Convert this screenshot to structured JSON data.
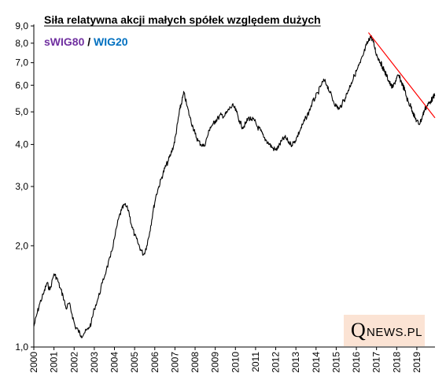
{
  "chart_data": {
    "type": "line",
    "title": "Siła relatywna akcji małych spółek względem dużych",
    "legend": {
      "items": [
        {
          "text": "sWIG80",
          "color": "#7030a0"
        },
        {
          "text": " / ",
          "color": "#000000"
        },
        {
          "text": "WIG20",
          "color": "#0070c0"
        }
      ],
      "placement": "top-left"
    },
    "y_scale": "log",
    "ylim": [
      1.0,
      9.0
    ],
    "xlim": [
      2000.0,
      2019.9
    ],
    "yticks": [
      {
        "value": 1.0,
        "label": "1,0"
      },
      {
        "value": 2.0,
        "label": "2,0"
      },
      {
        "value": 3.0,
        "label": "3,0"
      },
      {
        "value": 4.0,
        "label": "4,0"
      },
      {
        "value": 5.0,
        "label": "5,0"
      },
      {
        "value": 6.0,
        "label": "6,0"
      },
      {
        "value": 7.0,
        "label": "7,0"
      },
      {
        "value": 8.0,
        "label": "8,0"
      },
      {
        "value": 9.0,
        "label": "9,0"
      }
    ],
    "xticks": [
      "2000",
      "2001",
      "2002",
      "2003",
      "2004",
      "2005",
      "2006",
      "2007",
      "2008",
      "2009",
      "2010",
      "2011",
      "2012",
      "2013",
      "2014",
      "2015",
      "2016",
      "2017",
      "2018",
      "2019"
    ],
    "grid": false,
    "series": [
      {
        "color": "#000000",
        "x": [
          2000.0,
          2000.15,
          2000.3,
          2000.5,
          2000.65,
          2000.8,
          2001.0,
          2001.15,
          2001.3,
          2001.45,
          2001.6,
          2001.75,
          2001.9,
          2002.05,
          2002.2,
          2002.35,
          2002.5,
          2002.7,
          2002.85,
          2003.0,
          2003.2,
          2003.4,
          2003.6,
          2003.8,
          2004.0,
          2004.2,
          2004.35,
          2004.5,
          2004.7,
          2004.85,
          2005.0,
          2005.15,
          2005.3,
          2005.45,
          2005.6,
          2005.75,
          2005.9,
          2006.05,
          2006.2,
          2006.35,
          2006.5,
          2006.65,
          2006.8,
          2006.95,
          2007.05,
          2007.15,
          2007.25,
          2007.35,
          2007.45,
          2007.6,
          2007.75,
          2007.9,
          2008.0,
          2008.15,
          2008.3,
          2008.45,
          2008.6,
          2008.75,
          2008.9,
          2009.0,
          2009.15,
          2009.3,
          2009.45,
          2009.6,
          2009.75,
          2009.9,
          2010.05,
          2010.2,
          2010.35,
          2010.5,
          2010.65,
          2010.8,
          2010.95,
          2011.1,
          2011.25,
          2011.4,
          2011.55,
          2011.7,
          2011.85,
          2012.0,
          2012.15,
          2012.3,
          2012.45,
          2012.6,
          2012.75,
          2012.9,
          2013.05,
          2013.2,
          2013.35,
          2013.5,
          2013.65,
          2013.8,
          2013.95,
          2014.1,
          2014.25,
          2014.4,
          2014.55,
          2014.7,
          2014.85,
          2015.0,
          2015.15,
          2015.3,
          2015.45,
          2015.6,
          2015.75,
          2015.9,
          2016.05,
          2016.2,
          2016.35,
          2016.5,
          2016.6,
          2016.7,
          2016.8,
          2016.9,
          2017.0,
          2017.1,
          2017.2,
          2017.3,
          2017.4,
          2017.5,
          2017.6,
          2017.7,
          2017.8,
          2017.9,
          2018.0,
          2018.1,
          2018.2,
          2018.3,
          2018.4,
          2018.5,
          2018.6,
          2018.7,
          2018.8,
          2018.9,
          2019.0,
          2019.1,
          2019.2,
          2019.3,
          2019.4,
          2019.5,
          2019.6,
          2019.7,
          2019.8,
          2019.9
        ],
        "values": [
          1.15,
          1.25,
          1.35,
          1.45,
          1.55,
          1.48,
          1.65,
          1.6,
          1.5,
          1.42,
          1.3,
          1.35,
          1.25,
          1.15,
          1.12,
          1.08,
          1.1,
          1.13,
          1.18,
          1.3,
          1.4,
          1.55,
          1.7,
          1.85,
          2.1,
          2.4,
          2.55,
          2.65,
          2.55,
          2.3,
          2.15,
          2.05,
          1.95,
          1.88,
          2.0,
          2.2,
          2.5,
          2.8,
          3.0,
          3.2,
          3.4,
          3.55,
          3.75,
          4.0,
          4.3,
          4.7,
          5.1,
          5.4,
          5.7,
          5.2,
          4.8,
          4.5,
          4.3,
          4.1,
          4.0,
          3.95,
          4.2,
          4.5,
          4.6,
          4.7,
          4.8,
          4.9,
          4.85,
          5.0,
          5.15,
          5.2,
          5.0,
          4.7,
          4.5,
          4.6,
          4.8,
          4.75,
          4.7,
          4.5,
          4.4,
          4.2,
          4.1,
          4.0,
          3.9,
          3.85,
          3.95,
          4.1,
          4.2,
          4.1,
          4.0,
          4.05,
          4.2,
          4.4,
          4.6,
          4.8,
          5.0,
          5.3,
          5.5,
          5.7,
          6.0,
          6.2,
          6.0,
          5.7,
          5.4,
          5.2,
          5.1,
          5.3,
          5.5,
          5.8,
          6.1,
          6.4,
          6.7,
          7.0,
          7.4,
          7.9,
          8.1,
          8.4,
          8.2,
          7.8,
          7.4,
          7.2,
          7.0,
          6.8,
          6.6,
          6.4,
          6.2,
          6.0,
          5.9,
          6.1,
          6.3,
          6.4,
          6.2,
          6.0,
          5.8,
          5.5,
          5.3,
          5.2,
          5.0,
          4.8,
          4.7,
          4.6,
          4.7,
          4.9,
          5.1,
          5.2,
          5.3,
          5.4,
          5.5,
          5.6
        ]
      }
    ],
    "trendline": {
      "color": "#ff0000",
      "x": [
        2016.6,
        2019.9
      ],
      "values": [
        8.6,
        4.8
      ]
    }
  },
  "logo": {
    "q": "Q",
    "rest": "NEWS.PL"
  }
}
